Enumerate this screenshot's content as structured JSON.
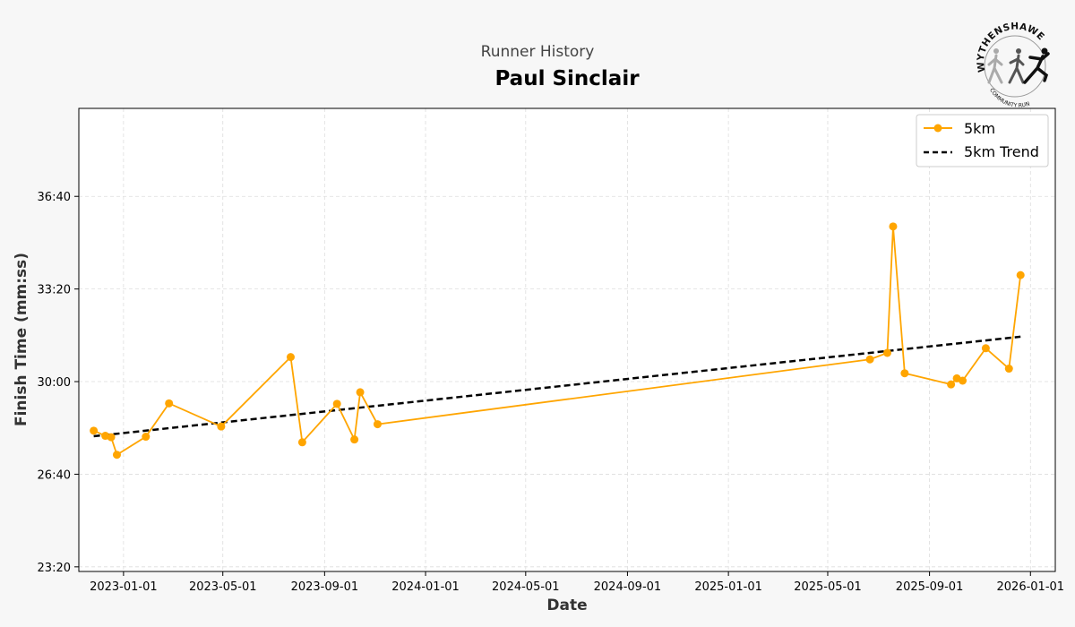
{
  "header": {
    "suptitle": "Runner History",
    "title": "Paul Sinclair"
  },
  "logo": {
    "name": "WYTHENSHAWE",
    "subtitle": "COMMUNITY RUN"
  },
  "colors": {
    "series": "#FFA500",
    "trend": "#000000",
    "grid": "#dddddd",
    "background": "#f7f7f7"
  },
  "chart_data": {
    "type": "line",
    "xlabel": "Date",
    "ylabel": "Finish Time (mm:ss)",
    "xlim": [
      "2022-11-08",
      "2026-01-31"
    ],
    "ylim": [
      "23:10",
      "39:50"
    ],
    "grid": true,
    "legend_position": "top-right",
    "x_ticks": [
      "2023-01-01",
      "2023-05-01",
      "2023-09-01",
      "2024-01-01",
      "2024-05-01",
      "2024-09-01",
      "2025-01-01",
      "2025-05-01",
      "2025-09-01",
      "2026-01-01"
    ],
    "y_ticks": [
      "23:20",
      "26:40",
      "30:00",
      "33:20",
      "36:40"
    ],
    "series": [
      {
        "name": "5km",
        "style": "line-with-markers",
        "points": [
          {
            "x": "2022-11-26",
            "y": "28:14"
          },
          {
            "x": "2022-12-10",
            "y": "28:03"
          },
          {
            "x": "2022-12-17",
            "y": "28:00"
          },
          {
            "x": "2022-12-24",
            "y": "27:22"
          },
          {
            "x": "2023-01-28",
            "y": "28:01"
          },
          {
            "x": "2023-02-25",
            "y": "29:13"
          },
          {
            "x": "2023-04-29",
            "y": "28:23"
          },
          {
            "x": "2023-07-22",
            "y": "30:53"
          },
          {
            "x": "2023-08-05",
            "y": "27:49"
          },
          {
            "x": "2023-09-16",
            "y": "29:12"
          },
          {
            "x": "2023-10-07",
            "y": "27:55"
          },
          {
            "x": "2023-10-14",
            "y": "29:37"
          },
          {
            "x": "2023-11-04",
            "y": "28:28"
          },
          {
            "x": "2025-06-21",
            "y": "30:48"
          },
          {
            "x": "2025-07-12",
            "y": "31:02"
          },
          {
            "x": "2025-07-19",
            "y": "35:35"
          },
          {
            "x": "2025-08-02",
            "y": "30:18"
          },
          {
            "x": "2025-09-27",
            "y": "29:54"
          },
          {
            "x": "2025-10-04",
            "y": "30:07"
          },
          {
            "x": "2025-10-11",
            "y": "30:02"
          },
          {
            "x": "2025-11-08",
            "y": "31:12"
          },
          {
            "x": "2025-12-06",
            "y": "30:28"
          },
          {
            "x": "2025-12-20",
            "y": "33:50"
          }
        ]
      },
      {
        "name": "5km Trend",
        "style": "dashed",
        "points": [
          {
            "x": "2022-11-26",
            "y": "28:02"
          },
          {
            "x": "2025-12-20",
            "y": "31:37"
          }
        ]
      }
    ]
  }
}
